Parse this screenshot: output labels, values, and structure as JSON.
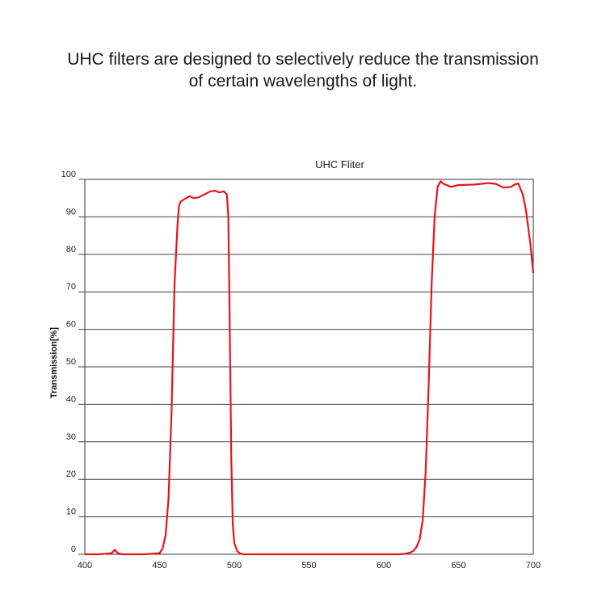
{
  "headline": {
    "line1": "UHC filters are designed to selectively reduce the transmission",
    "line2": "of certain wavelengths of light."
  },
  "chart_data": {
    "type": "line",
    "title": "UHC Fliter",
    "xlabel": "",
    "ylabel": "Transmission[%]",
    "xlim": [
      400,
      700
    ],
    "ylim": [
      0,
      100
    ],
    "xticks": [
      400,
      450,
      500,
      550,
      600,
      650,
      700
    ],
    "yticks": [
      0,
      10,
      20,
      30,
      40,
      50,
      60,
      70,
      80,
      90,
      100
    ],
    "grid": "horizontal",
    "line_color": "#e8141b",
    "series": [
      {
        "x": [
          400,
          410,
          418,
          420,
          422,
          425,
          440,
          450,
          452,
          454,
          456,
          458,
          460,
          462,
          463,
          464,
          465,
          467,
          470,
          473,
          476,
          480,
          484,
          487,
          490,
          493,
          495,
          496,
          497,
          498,
          499,
          500,
          502,
          504,
          506,
          510,
          515,
          520,
          550,
          580,
          600,
          610,
          615,
          618,
          620,
          622,
          624,
          626,
          628,
          630,
          632,
          634,
          636,
          638,
          640,
          645,
          650,
          660,
          670,
          675,
          680,
          685,
          688,
          690,
          693,
          695,
          698,
          700
        ],
        "y": [
          0,
          0,
          0.3,
          1.2,
          0.3,
          0,
          0,
          0.3,
          1.5,
          5,
          15,
          38,
          72,
          88,
          93,
          94,
          94.3,
          94.8,
          95.5,
          95,
          95.2,
          96,
          96.8,
          97,
          96.5,
          96.8,
          96,
          90,
          60,
          25,
          8,
          3,
          0.8,
          0.2,
          0,
          0,
          0,
          0,
          0,
          0,
          0,
          0,
          0.2,
          0.5,
          1,
          2,
          4,
          9,
          22,
          45,
          72,
          90,
          98,
          99.5,
          98.8,
          98,
          98.5,
          98.6,
          99,
          98.8,
          97.8,
          98,
          98.7,
          98.9,
          96,
          92,
          83,
          75
        ]
      }
    ]
  }
}
